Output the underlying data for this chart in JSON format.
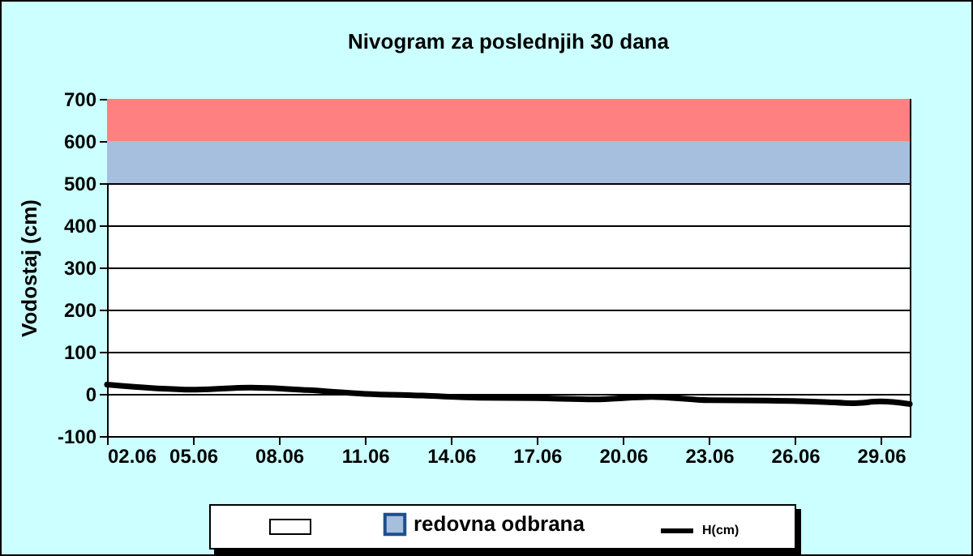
{
  "chart_data": {
    "type": "line",
    "title": "Nivogram za poslednjih 30 dana",
    "ylabel": "Vodostaj (cm)",
    "x": [
      "--06-02",
      "--06-05",
      "--06-07",
      "--06-09",
      "--06-11",
      "--06-13",
      "--06-15",
      "--06-17",
      "--06-19",
      "--06-21",
      "--06-23",
      "--06-25",
      "--06-27",
      "--06-28",
      "--06-29",
      "--06-30"
    ],
    "series": [
      {
        "name": "H(cm)",
        "color": "#000000",
        "values": [
          22,
          10,
          15,
          9,
          0,
          -4,
          -9,
          -10,
          -13,
          -7,
          -15,
          -16,
          -19,
          -22,
          -18,
          -24
        ]
      }
    ],
    "xlim": [
      "--06-02",
      "--06-30"
    ],
    "xticks": [
      {
        "value": "--06-02",
        "label": "02.06"
      },
      {
        "value": "--06-05",
        "label": "05.06"
      },
      {
        "value": "--06-08",
        "label": "08.06"
      },
      {
        "value": "--06-11",
        "label": "11.06"
      },
      {
        "value": "--06-14",
        "label": "14.06"
      },
      {
        "value": "--06-17",
        "label": "17.06"
      },
      {
        "value": "--06-20",
        "label": "20.06"
      },
      {
        "value": "--06-23",
        "label": "23.06"
      },
      {
        "value": "--06-26",
        "label": "26.06"
      },
      {
        "value": "--06-29",
        "label": "29.06"
      }
    ],
    "ylim": [
      -100,
      700
    ],
    "yticks": [
      -100,
      0,
      100,
      200,
      300,
      400,
      500,
      600,
      700
    ],
    "bands": [
      {
        "axis": "y",
        "from": 500,
        "to": 600,
        "label": "redovna odbrana",
        "color": "#a6bfdf"
      },
      {
        "axis": "y",
        "from": 600,
        "to": 700,
        "color": "#ff8080"
      }
    ],
    "grid": "y",
    "legend": "bottom",
    "marker": "none",
    "line_style": "solid"
  }
}
